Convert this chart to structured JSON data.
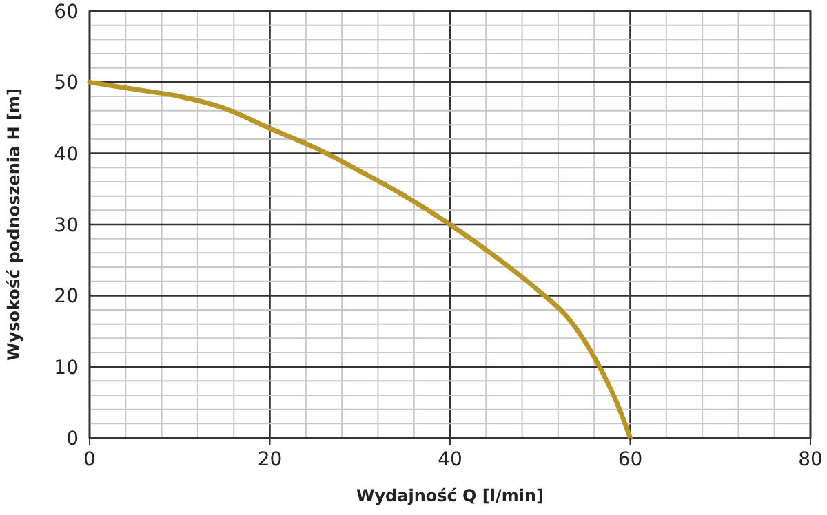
{
  "chart_data": {
    "type": "line",
    "xlabel": "Wydajność Q [l/min]",
    "ylabel": "Wysokość podnoszenia H [m]",
    "xlim": [
      0,
      80
    ],
    "ylim": [
      0,
      60
    ],
    "xticks": [
      0,
      {
        "value": 4,
        "label": null
      },
      {
        "value": 8,
        "label": null
      },
      {
        "value": 12,
        "label": null
      },
      {
        "value": 16,
        "label": null
      },
      20,
      {
        "value": 24,
        "label": null
      },
      {
        "value": 28,
        "label": null
      },
      {
        "value": 32,
        "label": null
      },
      {
        "value": 36,
        "label": null
      },
      40,
      {
        "value": 44,
        "label": null
      },
      {
        "value": 48,
        "label": null
      },
      {
        "value": 52,
        "label": null
      },
      {
        "value": 56,
        "label": null
      },
      60,
      {
        "value": 64,
        "label": null
      },
      {
        "value": 68,
        "label": null
      },
      {
        "value": 72,
        "label": null
      },
      {
        "value": 76,
        "label": null
      },
      80
    ],
    "yticks": [
      0,
      {
        "value": 2,
        "label": null
      },
      {
        "value": 4,
        "label": null
      },
      {
        "value": 6,
        "label": null
      },
      {
        "value": 8,
        "label": null
      },
      10,
      {
        "value": 12,
        "label": null
      },
      {
        "value": 14,
        "label": null
      },
      {
        "value": 16,
        "label": null
      },
      {
        "value": 18,
        "label": null
      },
      20,
      {
        "value": 22,
        "label": null
      },
      {
        "value": 24,
        "label": null
      },
      {
        "value": 26,
        "label": null
      },
      {
        "value": 28,
        "label": null
      },
      30,
      {
        "value": 32,
        "label": null
      },
      {
        "value": 34,
        "label": null
      },
      {
        "value": 36,
        "label": null
      },
      {
        "value": 38,
        "label": null
      },
      40,
      {
        "value": 42,
        "label": null
      },
      {
        "value": 44,
        "label": null
      },
      {
        "value": 46,
        "label": null
      },
      {
        "value": 48,
        "label": null
      },
      50,
      {
        "value": 52,
        "label": null
      },
      {
        "value": 54,
        "label": null
      },
      {
        "value": 56,
        "label": null
      },
      {
        "value": 58,
        "label": null
      },
      60
    ],
    "grid": true,
    "marker": "none",
    "line_style": "solid",
    "series": [
      {
        "color": "#b8962a",
        "x": [
          0,
          5,
          10,
          15,
          20,
          25,
          30,
          35,
          40,
          45,
          50,
          53,
          55,
          57,
          58.5,
          60
        ],
        "values": [
          50,
          49,
          48,
          46.3,
          43.5,
          40.8,
          37.5,
          34,
          30,
          25.5,
          20.5,
          17,
          13.5,
          9,
          5,
          0
        ]
      }
    ]
  }
}
